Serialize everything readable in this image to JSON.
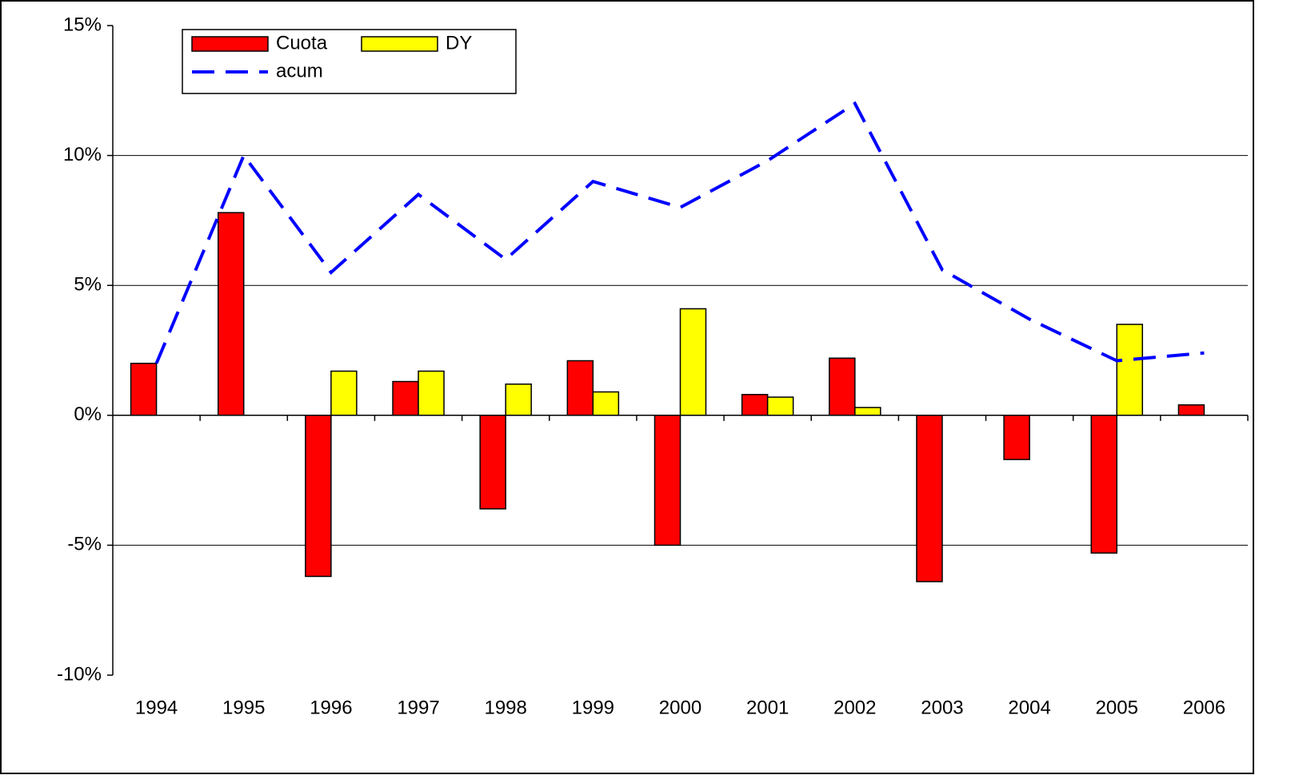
{
  "chart_data": {
    "type": "bar",
    "categories": [
      "1994",
      "1995",
      "1996",
      "1997",
      "1998",
      "1999",
      "2000",
      "2001",
      "2002",
      "2003",
      "2004",
      "2005",
      "2006"
    ],
    "series": [
      {
        "name": "Cuota",
        "type": "bar",
        "color": "#ff0000",
        "values": [
          2.0,
          7.8,
          -6.2,
          1.3,
          -3.6,
          2.1,
          -5.0,
          0.8,
          2.2,
          -6.4,
          -1.7,
          -5.3,
          0.4
        ]
      },
      {
        "name": "DY",
        "type": "bar",
        "color": "#ffff00",
        "values": [
          null,
          null,
          1.7,
          1.7,
          1.2,
          0.9,
          4.1,
          0.7,
          0.3,
          null,
          null,
          3.5,
          null
        ]
      },
      {
        "name": "acum",
        "type": "line",
        "color": "#0000ff",
        "dashed": true,
        "values": [
          2.0,
          10.0,
          5.5,
          8.5,
          6.0,
          9.0,
          8.0,
          9.8,
          12.0,
          5.6,
          3.7,
          2.1,
          2.4
        ]
      }
    ],
    "ylim": [
      -10,
      15
    ],
    "yticks": [
      {
        "value": -10,
        "label": "-10%"
      },
      {
        "value": -5,
        "label": "-5%"
      },
      {
        "value": 0,
        "label": "0%"
      },
      {
        "value": 5,
        "label": "5%"
      },
      {
        "value": 10,
        "label": "10%"
      },
      {
        "value": 15,
        "label": "15%"
      }
    ],
    "grid": true,
    "legend": "upper left"
  }
}
